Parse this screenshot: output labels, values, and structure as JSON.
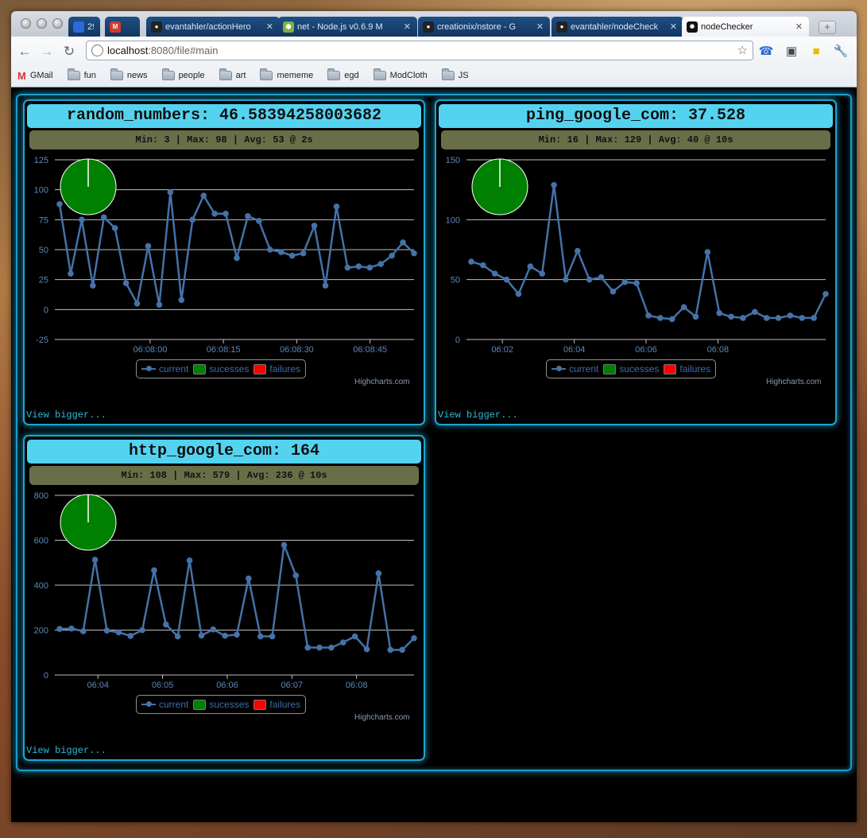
{
  "browser": {
    "tabs": [
      {
        "title": "29",
        "favicon": "calendar-icon",
        "color": "#2a6ad9",
        "closable": false
      },
      {
        "title": "",
        "favicon": "gmail-icon",
        "color": "#d33a2c",
        "closable": false
      },
      {
        "title": "evantahler/actionHero",
        "favicon": "github-icon",
        "color": "#222222",
        "closable": true
      },
      {
        "title": "net - Node.js v0.6.9 M",
        "favicon": "node-icon",
        "color": "#7bb33b",
        "closable": true
      },
      {
        "title": "creationix/nstore - G",
        "favicon": "github-icon",
        "color": "#222222",
        "closable": true
      },
      {
        "title": "evantahler/nodeCheck",
        "favicon": "github-icon",
        "color": "#222222",
        "closable": true
      },
      {
        "title": "nodeChecker",
        "favicon": "spider-icon",
        "color": "#111111",
        "closable": true,
        "active": true
      }
    ],
    "url_host": "localhost",
    "url_rest": ":8080/file#main",
    "bookmarks": [
      {
        "label": "GMail",
        "icon": "gmail-icon"
      },
      {
        "label": "fun",
        "icon": "folder-icon"
      },
      {
        "label": "news",
        "icon": "folder-icon"
      },
      {
        "label": "people",
        "icon": "folder-icon"
      },
      {
        "label": "art",
        "icon": "folder-icon"
      },
      {
        "label": "mememe",
        "icon": "folder-icon"
      },
      {
        "label": "egd",
        "icon": "folder-icon"
      },
      {
        "label": "ModCloth",
        "icon": "folder-icon"
      },
      {
        "label": "JS",
        "icon": "folder-icon"
      }
    ]
  },
  "colors": {
    "panel_title_bg": "#54d3f0",
    "stats_bg": "#6a6e48",
    "line": "#4572a7",
    "success": "#008000",
    "failure": "#ff0000",
    "glow": "#1ea6d0"
  },
  "panels": [
    {
      "title": "random_numbers: 46.58394258003682",
      "stats": "Min: 3 | Max: 98 | Avg: 53 @ 2s",
      "view_bigger": "View bigger...",
      "legend": {
        "current": "current",
        "successes": "sucesses",
        "failures": "failures"
      },
      "credits": "Highcharts.com"
    },
    {
      "title": "ping_google_com: 37.528",
      "stats": "Min: 16 | Max: 129 | Avg: 40 @ 10s",
      "view_bigger": "View bigger...",
      "legend": {
        "current": "current",
        "successes": "sucesses",
        "failures": "failures"
      },
      "credits": "Highcharts.com"
    },
    {
      "title": "http_google_com: 164",
      "stats": "Min: 108 | Max: 579 | Avg: 236 @ 10s",
      "view_bigger": "View bigger...",
      "legend": {
        "current": "current",
        "successes": "sucesses",
        "failures": "failures"
      },
      "credits": "Highcharts.com"
    }
  ],
  "chart_data": [
    {
      "type": "line",
      "title": "random_numbers",
      "ylim": [
        -25,
        125
      ],
      "yticks": [
        -25,
        0,
        25,
        50,
        75,
        100,
        125
      ],
      "xlim": [
        0,
        49
      ],
      "xticks": [
        {
          "x": 13,
          "label": "06:08:00"
        },
        {
          "x": 23,
          "label": "06:08:15"
        },
        {
          "x": 33,
          "label": "06:08:30"
        },
        {
          "x": 43,
          "label": "06:08:45"
        }
      ],
      "values": [
        88,
        30,
        75,
        20,
        77,
        68,
        22,
        5,
        53,
        4,
        98,
        8,
        75,
        95,
        80,
        80,
        43,
        78,
        74,
        50,
        48,
        45,
        47,
        70,
        20,
        86,
        35,
        36,
        35,
        38,
        45,
        56,
        47
      ],
      "pie": {
        "successes": 100,
        "failures": 0
      },
      "series": [
        {
          "name": "current"
        },
        {
          "name": "sucesses"
        },
        {
          "name": "failures"
        }
      ]
    },
    {
      "type": "line",
      "title": "ping_google_com",
      "ylim": [
        0,
        150
      ],
      "yticks": [
        0,
        50,
        100,
        150
      ],
      "xlim": [
        0,
        100
      ],
      "xticks": [
        {
          "x": 10,
          "label": "06:02"
        },
        {
          "x": 30,
          "label": "06:04"
        },
        {
          "x": 50,
          "label": "06:06"
        },
        {
          "x": 70,
          "label": "06:08"
        }
      ],
      "values": [
        65,
        62,
        55,
        50,
        38,
        61,
        55,
        129,
        50,
        74,
        50,
        52,
        40,
        48,
        47,
        20,
        18,
        17,
        27,
        19,
        73,
        22,
        19,
        18,
        23,
        18,
        18,
        20,
        18,
        18,
        38
      ],
      "pie": {
        "successes": 100,
        "failures": 0
      },
      "series": [
        {
          "name": "current"
        },
        {
          "name": "sucesses"
        },
        {
          "name": "failures"
        }
      ]
    },
    {
      "type": "line",
      "title": "http_google_com",
      "ylim": [
        0,
        800
      ],
      "yticks": [
        0,
        200,
        400,
        600,
        800
      ],
      "xlim": [
        0,
        100
      ],
      "xticks": [
        {
          "x": 12,
          "label": "06:04"
        },
        {
          "x": 30,
          "label": "06:05"
        },
        {
          "x": 48,
          "label": "06:06"
        },
        {
          "x": 66,
          "label": "06:07"
        },
        {
          "x": 84,
          "label": "06:08"
        }
      ],
      "values": [
        205,
        207,
        195,
        513,
        198,
        190,
        174,
        200,
        466,
        225,
        172,
        510,
        176,
        203,
        175,
        180,
        430,
        172,
        172,
        579,
        443,
        122,
        122,
        122,
        145,
        172,
        115,
        453,
        112,
        112,
        164
      ],
      "pie": {
        "successes": 100,
        "failures": 0
      },
      "series": [
        {
          "name": "current"
        },
        {
          "name": "sucesses"
        },
        {
          "name": "failures"
        }
      ]
    }
  ]
}
